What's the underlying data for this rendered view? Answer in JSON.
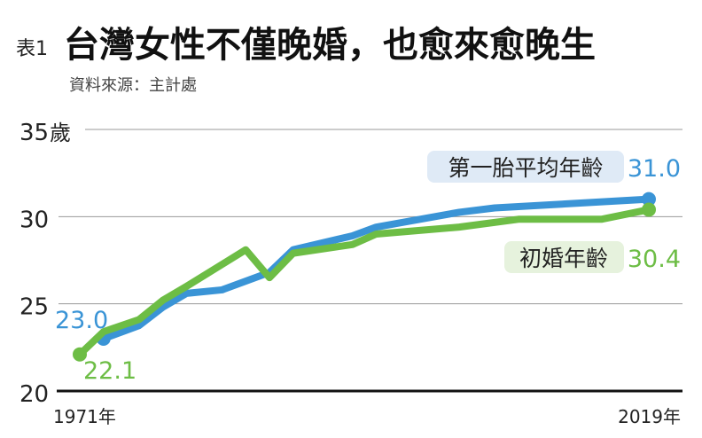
{
  "chart_data": {
    "type": "line",
    "table_label": "表1",
    "title": "台灣女性不僅晚婚，也愈來愈晚生",
    "source": "資料來源：主計處",
    "y_unit": "歲",
    "ylim": [
      20,
      35
    ],
    "y_ticks": [
      "35",
      "30",
      "25",
      "20"
    ],
    "x_ticks": [
      "1971年",
      "2019年"
    ],
    "xlim": [
      1971,
      2019
    ],
    "grid": true,
    "series": [
      {
        "name": "第一胎平均年齡",
        "color": "#3a94d6",
        "label_bg": "#dfeaf6",
        "start_label": "23.0",
        "end_label": "31.0",
        "x": [
          1973,
          1976,
          1978,
          1980,
          1983,
          1987,
          1989,
          1994,
          1996,
          2003,
          2006,
          2019
        ],
        "y": [
          23.0,
          23.75,
          24.8,
          25.6,
          25.8,
          26.8,
          28.1,
          28.9,
          29.4,
          30.25,
          30.5,
          31.0
        ]
      },
      {
        "name": "初婚年齡",
        "color": "#6dbd45",
        "label_bg": "#e6f2dd",
        "start_label": "22.1",
        "end_label": "30.4",
        "x": [
          1971,
          1973,
          1976,
          1978,
          1980,
          1985,
          1987,
          1989,
          1994,
          1996,
          2003,
          2008,
          2015,
          2019
        ],
        "y": [
          22.1,
          23.4,
          24.1,
          25.2,
          26.0,
          28.1,
          26.5,
          27.9,
          28.4,
          29.0,
          29.4,
          29.85,
          29.85,
          30.4
        ]
      }
    ]
  }
}
